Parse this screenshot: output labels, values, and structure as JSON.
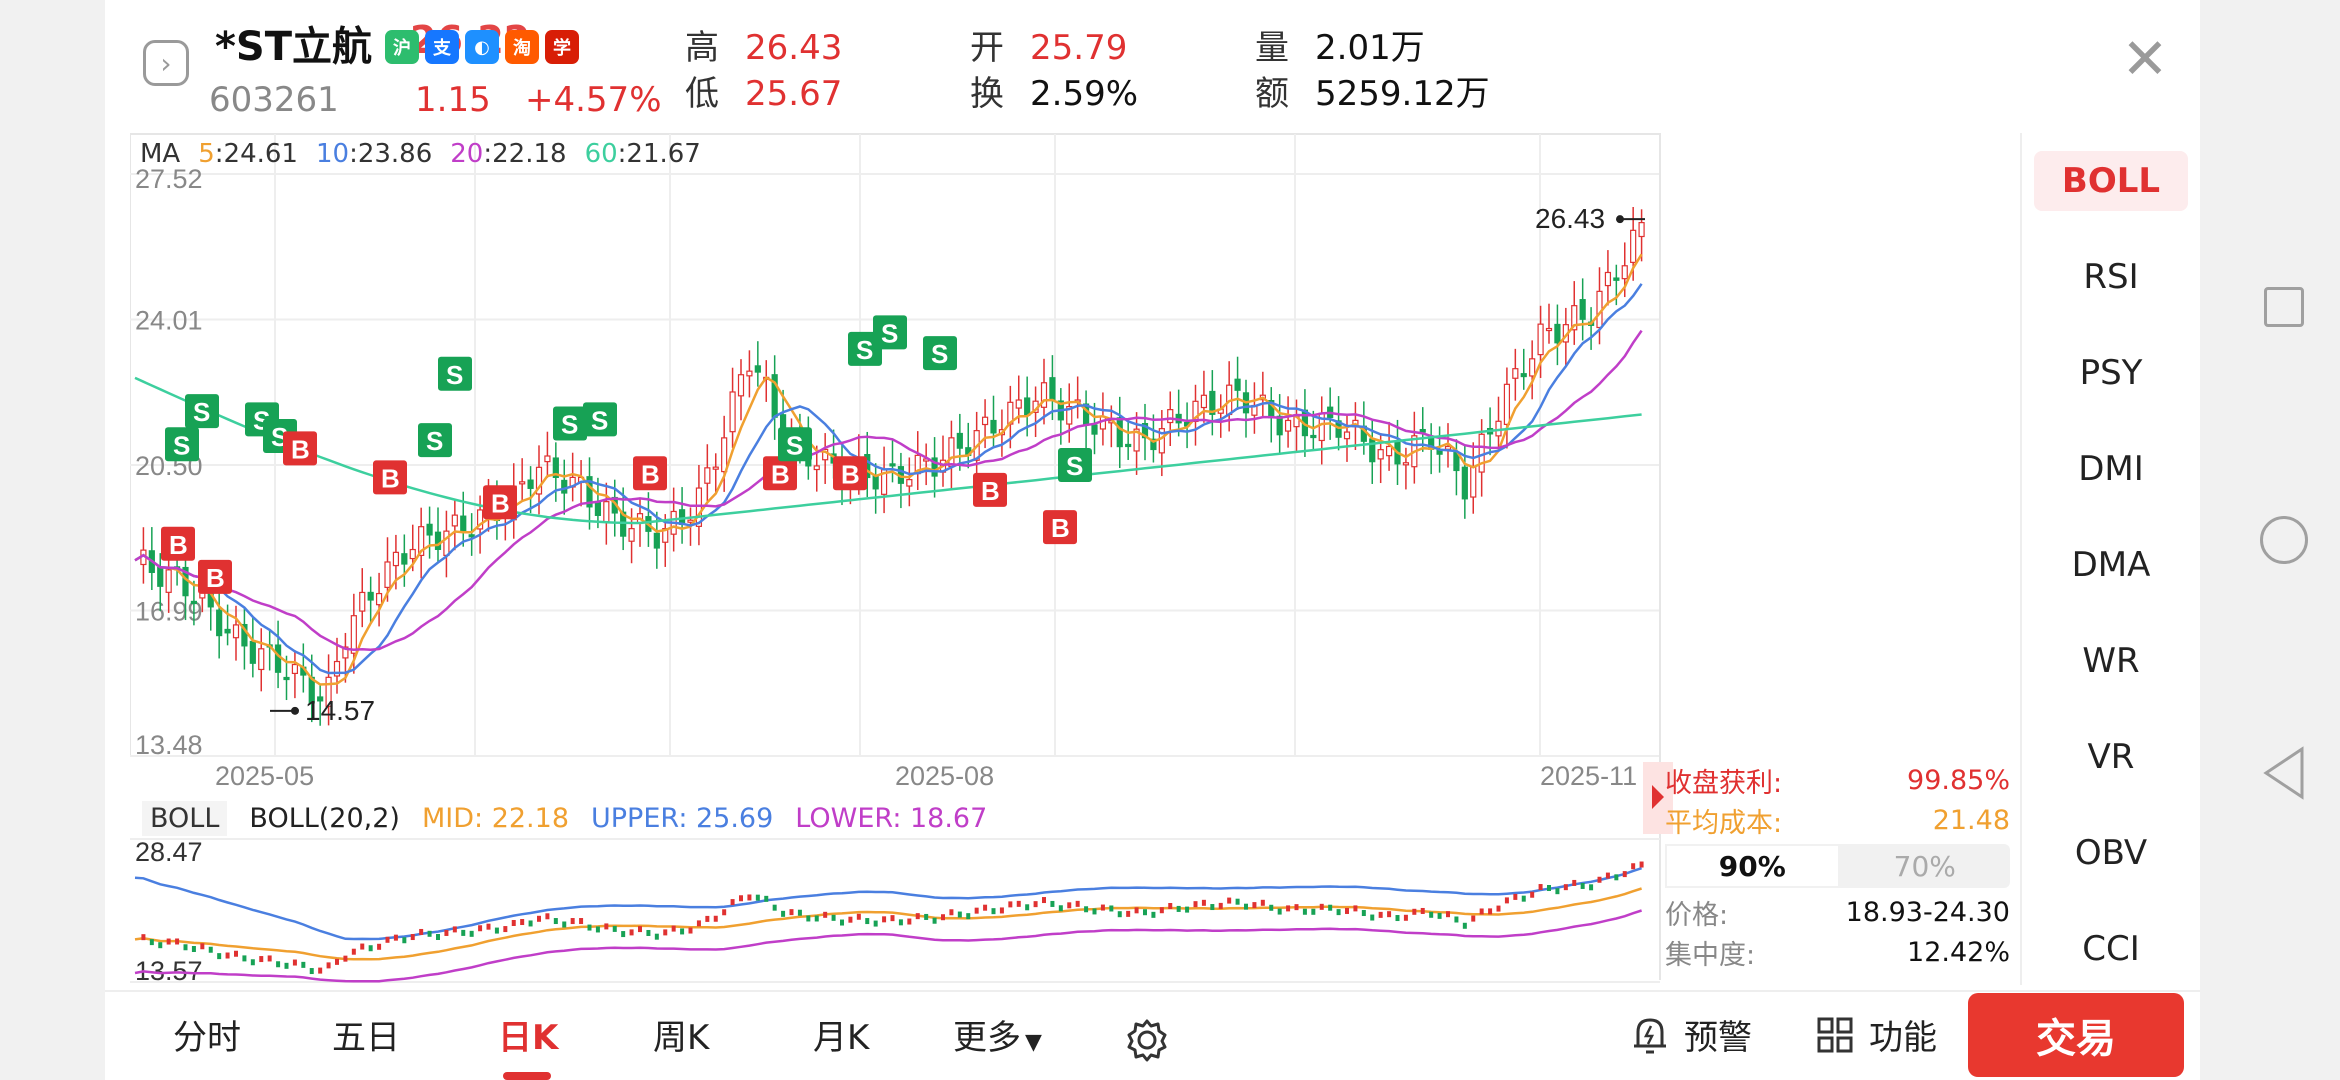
{
  "header": {
    "name": "*ST立航",
    "price": "26.22",
    "code": "603261",
    "change_abs": "1.15",
    "change_pct": "+4.57%",
    "badges": [
      {
        "icon": "green-badge",
        "text": "沪",
        "color": "#2dbd6e"
      },
      {
        "icon": "blue-badge",
        "text": "支",
        "color": "#1677ff"
      },
      {
        "icon": "chat-badge",
        "text": "◐",
        "color": "#1e90ff"
      },
      {
        "icon": "taobao-badge",
        "text": "淘",
        "color": "#ff5a00"
      },
      {
        "icon": "red-badge",
        "text": "学",
        "color": "#d81e06"
      }
    ],
    "quotes": {
      "high_label": "高",
      "high": "26.43",
      "low_label": "低",
      "low": "25.67",
      "open_label": "开",
      "open": "25.79",
      "turnover_label": "换",
      "turnover": "2.59%",
      "volume_label": "量",
      "volume": "2.01万",
      "amount_label": "额",
      "amount": "5259.12万"
    }
  },
  "ma": {
    "label": "MA",
    "items": [
      {
        "period": "5",
        "value": ":24.61",
        "color": "#f0a030"
      },
      {
        "period": "10",
        "value": ":23.86",
        "color": "#4a7fe0"
      },
      {
        "period": "20",
        "value": ":22.18",
        "color": "#c03ec8"
      },
      {
        "period": "60",
        "value": ":21.67",
        "color": "#3dcf9e"
      }
    ]
  },
  "price_axis": [
    "27.52",
    "24.01",
    "20.50",
    "16.99",
    "13.48"
  ],
  "date_axis": [
    "2025-05",
    "2025-08",
    "2025-11"
  ],
  "annotations": {
    "high_marker": "26.43",
    "low_marker": "14.57",
    "chip_avg": "21.48"
  },
  "boll": {
    "label": "BOLL",
    "params": "BOLL(20,2)",
    "mid": "MID: 22.18",
    "upper": "UPPER: 25.69",
    "lower": "LOWER: 18.67",
    "axis_top": "28.47",
    "axis_bottom": "13.57",
    "colors": {
      "mid": "#f0a030",
      "upper": "#4a7fe0",
      "lower": "#c03ec8"
    }
  },
  "chips": {
    "profit_label": "收盘获利:",
    "profit": "99.85%",
    "avg_cost_label": "平均成本:",
    "avg_cost": "21.48",
    "tabs": [
      "90%",
      "70%"
    ],
    "price_label": "价格:",
    "price_range": "18.93-24.30",
    "conc_label": "集中度:",
    "concentration": "12.42%"
  },
  "indicators": [
    "BOLL",
    "RSI",
    "PSY",
    "DMI",
    "DMA",
    "WR",
    "VR",
    "OBV",
    "CCI"
  ],
  "bottom_tabs": [
    "分时",
    "五日",
    "日K",
    "周K",
    "月K",
    "更多"
  ],
  "tools": {
    "alert": "预警",
    "function": "功能",
    "trade": "交易"
  },
  "colors": {
    "up": "#e03131",
    "down": "#17a255",
    "accent": "#e8382f"
  }
}
